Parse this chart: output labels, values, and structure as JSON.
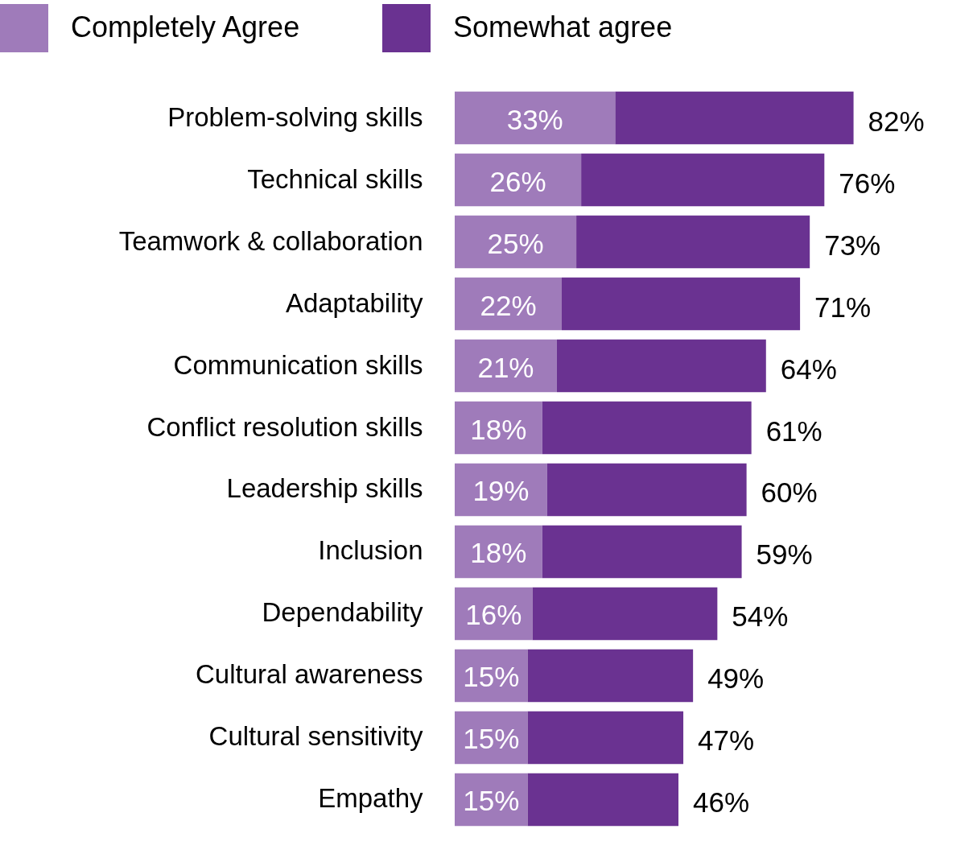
{
  "chart_data": {
    "type": "bar",
    "orientation": "horizontal",
    "stacked": true,
    "legend": "top",
    "categories": [
      "Problem-solving skills",
      "Technical skills",
      "Teamwork & collaboration",
      "Adaptability",
      "Communication skills",
      "Conflict resolution skills",
      "Leadership skills",
      "Inclusion",
      "Dependability",
      "Cultural awareness",
      "Cultural sensitivity",
      "Empathy"
    ],
    "series": [
      {
        "name": "Completely Agree",
        "color": "#9f7bba",
        "values": [
          33,
          26,
          25,
          22,
          21,
          18,
          19,
          18,
          16,
          15,
          15,
          15
        ],
        "value_labels": [
          "33%",
          "26%",
          "25%",
          "22%",
          "21%",
          "18%",
          "19%",
          "18%",
          "16%",
          "15%",
          "15%",
          "15%"
        ]
      },
      {
        "name": "Somewhat agree",
        "color": "#6a3291",
        "values": [
          49,
          50,
          48,
          49,
          43,
          43,
          41,
          41,
          38,
          34,
          32,
          31
        ]
      }
    ],
    "totals": [
      "82%",
      "76%",
      "73%",
      "71%",
      "64%",
      "61%",
      "60%",
      "59%",
      "54%",
      "49%",
      "47%",
      "46%"
    ]
  }
}
